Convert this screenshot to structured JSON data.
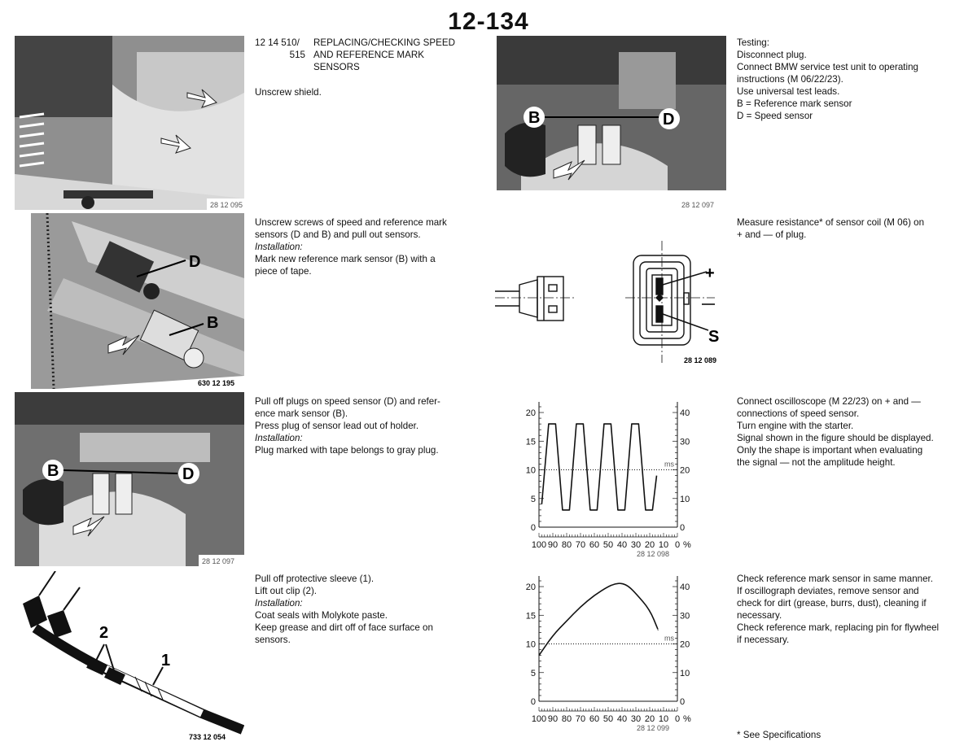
{
  "page_number": "12-134",
  "section": {
    "number_line1": "12 14 510/",
    "number_line2": "515",
    "title_line1": "REPLACING/CHECKING SPEED",
    "title_line2": "AND REFERENCE MARK",
    "title_line3": "SENSORS"
  },
  "left_column": [
    {
      "lines": [
        "Unscrew shield."
      ]
    },
    {
      "lines": [
        "Unscrew screws of speed and reference mark",
        "sensors (D and B) and pull out sensors."
      ],
      "install_label": "Installation:",
      "install_lines": [
        "Mark new reference mark sensor (B) with a",
        "piece of tape."
      ]
    },
    {
      "lines": [
        "Pull off plugs on speed sensor (D) and refer-",
        "ence mark sensor (B).",
        "Press plug of sensor lead out of holder."
      ],
      "install_label": "Installation:",
      "install_lines": [
        "Plug marked with tape belongs to gray plug."
      ]
    },
    {
      "lines": [
        "Pull off protective sleeve (1).",
        "Lift out clip (2)."
      ],
      "install_label": "Installation:",
      "install_lines": [
        "Coat seals with Molykote paste.",
        "Keep grease and dirt off of face surface on",
        "sensors."
      ]
    }
  ],
  "right_column": [
    {
      "lines": [
        "Testing:",
        "Disconnect plug.",
        "Connect BMW service test unit to operating",
        "instructions (M 06/22/23).",
        "Use universal test leads.",
        "B = Reference mark sensor",
        "D = Speed sensor"
      ]
    },
    {
      "lines": [
        "Measure resistance* of sensor coil (M 06) on",
        "+ and — of plug."
      ]
    },
    {
      "lines": [
        "Connect oscilloscope (M 22/23) on + and —",
        "connections of speed sensor.",
        "Turn engine with the starter.",
        "Signal shown in the figure should be displayed.",
        "Only the shape is important when evaluating",
        "the signal — not the amplitude height."
      ]
    },
    {
      "lines": [
        "Check reference mark sensor in same manner.",
        "If oscillograph deviates, remove sensor and",
        "check for dirt (grease, burrs, dust), cleaning if",
        "necessary.",
        "Check reference mark, replacing pin for flywheel",
        "if necessary."
      ]
    }
  ],
  "footnote": "* See Specifications",
  "figures": {
    "photo1_caption": "28 12 095",
    "photo2_caption": "630 12 195",
    "photo2_labels": [
      "D",
      "B"
    ],
    "photo3_caption": "28 12 097",
    "photo3_labels": [
      "B",
      "D"
    ],
    "drawing4_caption": "733 12 054",
    "drawing4_labels": [
      "2",
      "1"
    ],
    "photo5_caption": "28 12 097",
    "photo5_labels": [
      "B",
      "D"
    ],
    "plug_caption": "28 12 089",
    "plug_labels": [
      "+",
      "S"
    ],
    "scope1_caption": "28 12 098",
    "scope2_caption": "28 12 099",
    "scope_unit": "ms",
    "scope_percent": "%"
  },
  "chart_data": [
    {
      "type": "line",
      "y_left_ticks": [
        "20",
        "15",
        "10",
        "5",
        "0"
      ],
      "y_right_ticks": [
        "40",
        "30",
        "20",
        "10",
        "0"
      ],
      "x_ticks": [
        "100",
        "90",
        "80",
        "70",
        "60",
        "50",
        "40",
        "30",
        "20",
        "10",
        "0"
      ],
      "xlim": [
        100,
        0
      ],
      "ylim": [
        0,
        21
      ],
      "grid": false,
      "series": [
        {
          "x": [
            98,
            93,
            88,
            83,
            78,
            73,
            68,
            63,
            58,
            53,
            48,
            43,
            38,
            33,
            28,
            23,
            18,
            15
          ],
          "y": [
            4,
            18,
            18,
            3,
            3,
            18,
            18,
            3,
            3,
            18,
            18,
            3,
            3,
            18,
            18,
            3,
            3,
            9
          ]
        }
      ]
    },
    {
      "type": "line",
      "y_left_ticks": [
        "20",
        "15",
        "10",
        "5",
        "0"
      ],
      "y_right_ticks": [
        "40",
        "30",
        "20",
        "10",
        "0"
      ],
      "x_ticks": [
        "100",
        "90",
        "80",
        "70",
        "60",
        "50",
        "40",
        "30",
        "20",
        "10",
        "0"
      ],
      "xlim": [
        100,
        0
      ],
      "ylim": [
        0,
        21
      ],
      "grid": false,
      "series": [
        {
          "x": [
            100,
            90,
            80,
            70,
            60,
            50,
            45,
            40,
            35,
            30,
            20,
            14
          ],
          "y": [
            8,
            11.5,
            14,
            16.5,
            18.5,
            20,
            20.5,
            20.6,
            20,
            18.8,
            16,
            12.5
          ]
        }
      ]
    }
  ]
}
